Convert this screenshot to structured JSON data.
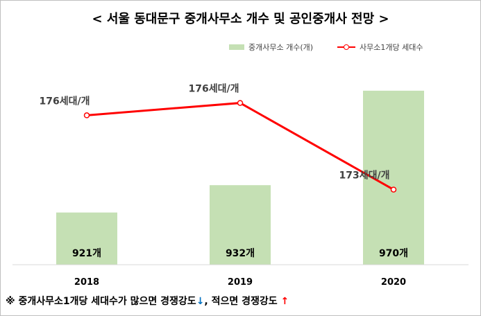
{
  "title": "< 서울 동대문구 중개사무소 개수 및 공인중개사 전망 >",
  "legend": {
    "bar_label": "중개사무소 개수(개)",
    "line_label": "사무소1개당 세대수"
  },
  "footnote": {
    "prefix": "※ 중개사무소1개당 세대수가 많으면 경쟁강도",
    "down_arrow": "↓",
    "middle": ", 적으면 경쟁강도 ",
    "up_arrow": "↑"
  },
  "colors": {
    "bar": "#c5e0b4",
    "line": "#ff0000",
    "text": "#404040"
  },
  "chart_data": {
    "type": "bar",
    "title": "< 서울 동대문구 중개사무소 개수 및 공인중개사 전망 >",
    "categories": [
      "2018",
      "2019",
      "2020"
    ],
    "series": [
      {
        "name": "중개사무소 개수(개)",
        "type": "bar",
        "values": [
          921,
          932,
          970
        ],
        "data_labels": [
          "921개",
          "932개",
          "970개"
        ]
      },
      {
        "name": "사무소1개당 세대수",
        "type": "line",
        "values": [
          176,
          176.5,
          173
        ],
        "data_labels": [
          "176세대/개",
          "176세대/개",
          "173세대/개"
        ]
      }
    ],
    "bar_axis_range": [
      900,
      980
    ],
    "line_axis_range": [
      171,
      178
    ],
    "grid": false,
    "legend_position": "top-right"
  }
}
